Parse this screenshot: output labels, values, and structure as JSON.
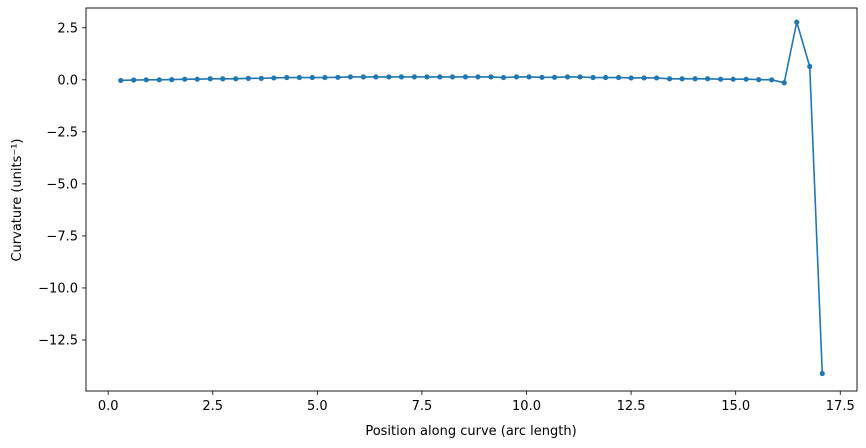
{
  "chart_data": {
    "type": "line",
    "title": "",
    "xlabel": "Position along curve (arc length)",
    "ylabel": "Curvature (units⁻¹)",
    "xlim": [
      -0.53,
      17.9
    ],
    "ylim": [
      -14.95,
      3.45
    ],
    "xticks": [
      0.0,
      2.5,
      5.0,
      7.5,
      10.0,
      12.5,
      15.0,
      17.5
    ],
    "xtick_labels": [
      "0.0",
      "2.5",
      "5.0",
      "7.5",
      "10.0",
      "12.5",
      "15.0",
      "17.5"
    ],
    "yticks": [
      2.5,
      0.0,
      -2.5,
      -5.0,
      -7.5,
      -10.0,
      -12.5
    ],
    "ytick_labels": [
      "2.5",
      "0.0",
      "−2.5",
      "−5.0",
      "−7.5",
      "−10.0",
      "−12.5"
    ],
    "grid": false,
    "color": "#1f77b4",
    "series": [
      {
        "name": "curvature",
        "x": [
          0.3,
          0.61,
          0.91,
          1.22,
          1.52,
          1.83,
          2.13,
          2.44,
          2.74,
          3.05,
          3.35,
          3.66,
          3.96,
          4.27,
          4.57,
          4.88,
          5.18,
          5.49,
          5.79,
          6.1,
          6.4,
          6.71,
          7.01,
          7.32,
          7.62,
          7.93,
          8.23,
          8.54,
          8.84,
          9.15,
          9.45,
          9.76,
          10.06,
          10.37,
          10.67,
          10.98,
          11.28,
          11.59,
          11.89,
          12.2,
          12.5,
          12.81,
          13.11,
          13.42,
          13.72,
          14.03,
          14.33,
          14.64,
          14.94,
          15.25,
          15.55,
          15.86,
          16.16,
          16.46,
          16.77,
          17.07
        ],
        "y": [
          -0.03,
          -0.01,
          0.0,
          0.0,
          0.01,
          0.03,
          0.03,
          0.05,
          0.05,
          0.05,
          0.07,
          0.07,
          0.09,
          0.11,
          0.11,
          0.11,
          0.11,
          0.12,
          0.14,
          0.14,
          0.14,
          0.14,
          0.14,
          0.14,
          0.14,
          0.14,
          0.14,
          0.14,
          0.14,
          0.14,
          0.11,
          0.14,
          0.14,
          0.12,
          0.12,
          0.14,
          0.14,
          0.11,
          0.11,
          0.11,
          0.09,
          0.09,
          0.09,
          0.05,
          0.05,
          0.05,
          0.05,
          0.03,
          0.03,
          0.03,
          0.01,
          0.0,
          -0.14,
          2.77,
          0.64,
          -14.11
        ]
      }
    ]
  }
}
